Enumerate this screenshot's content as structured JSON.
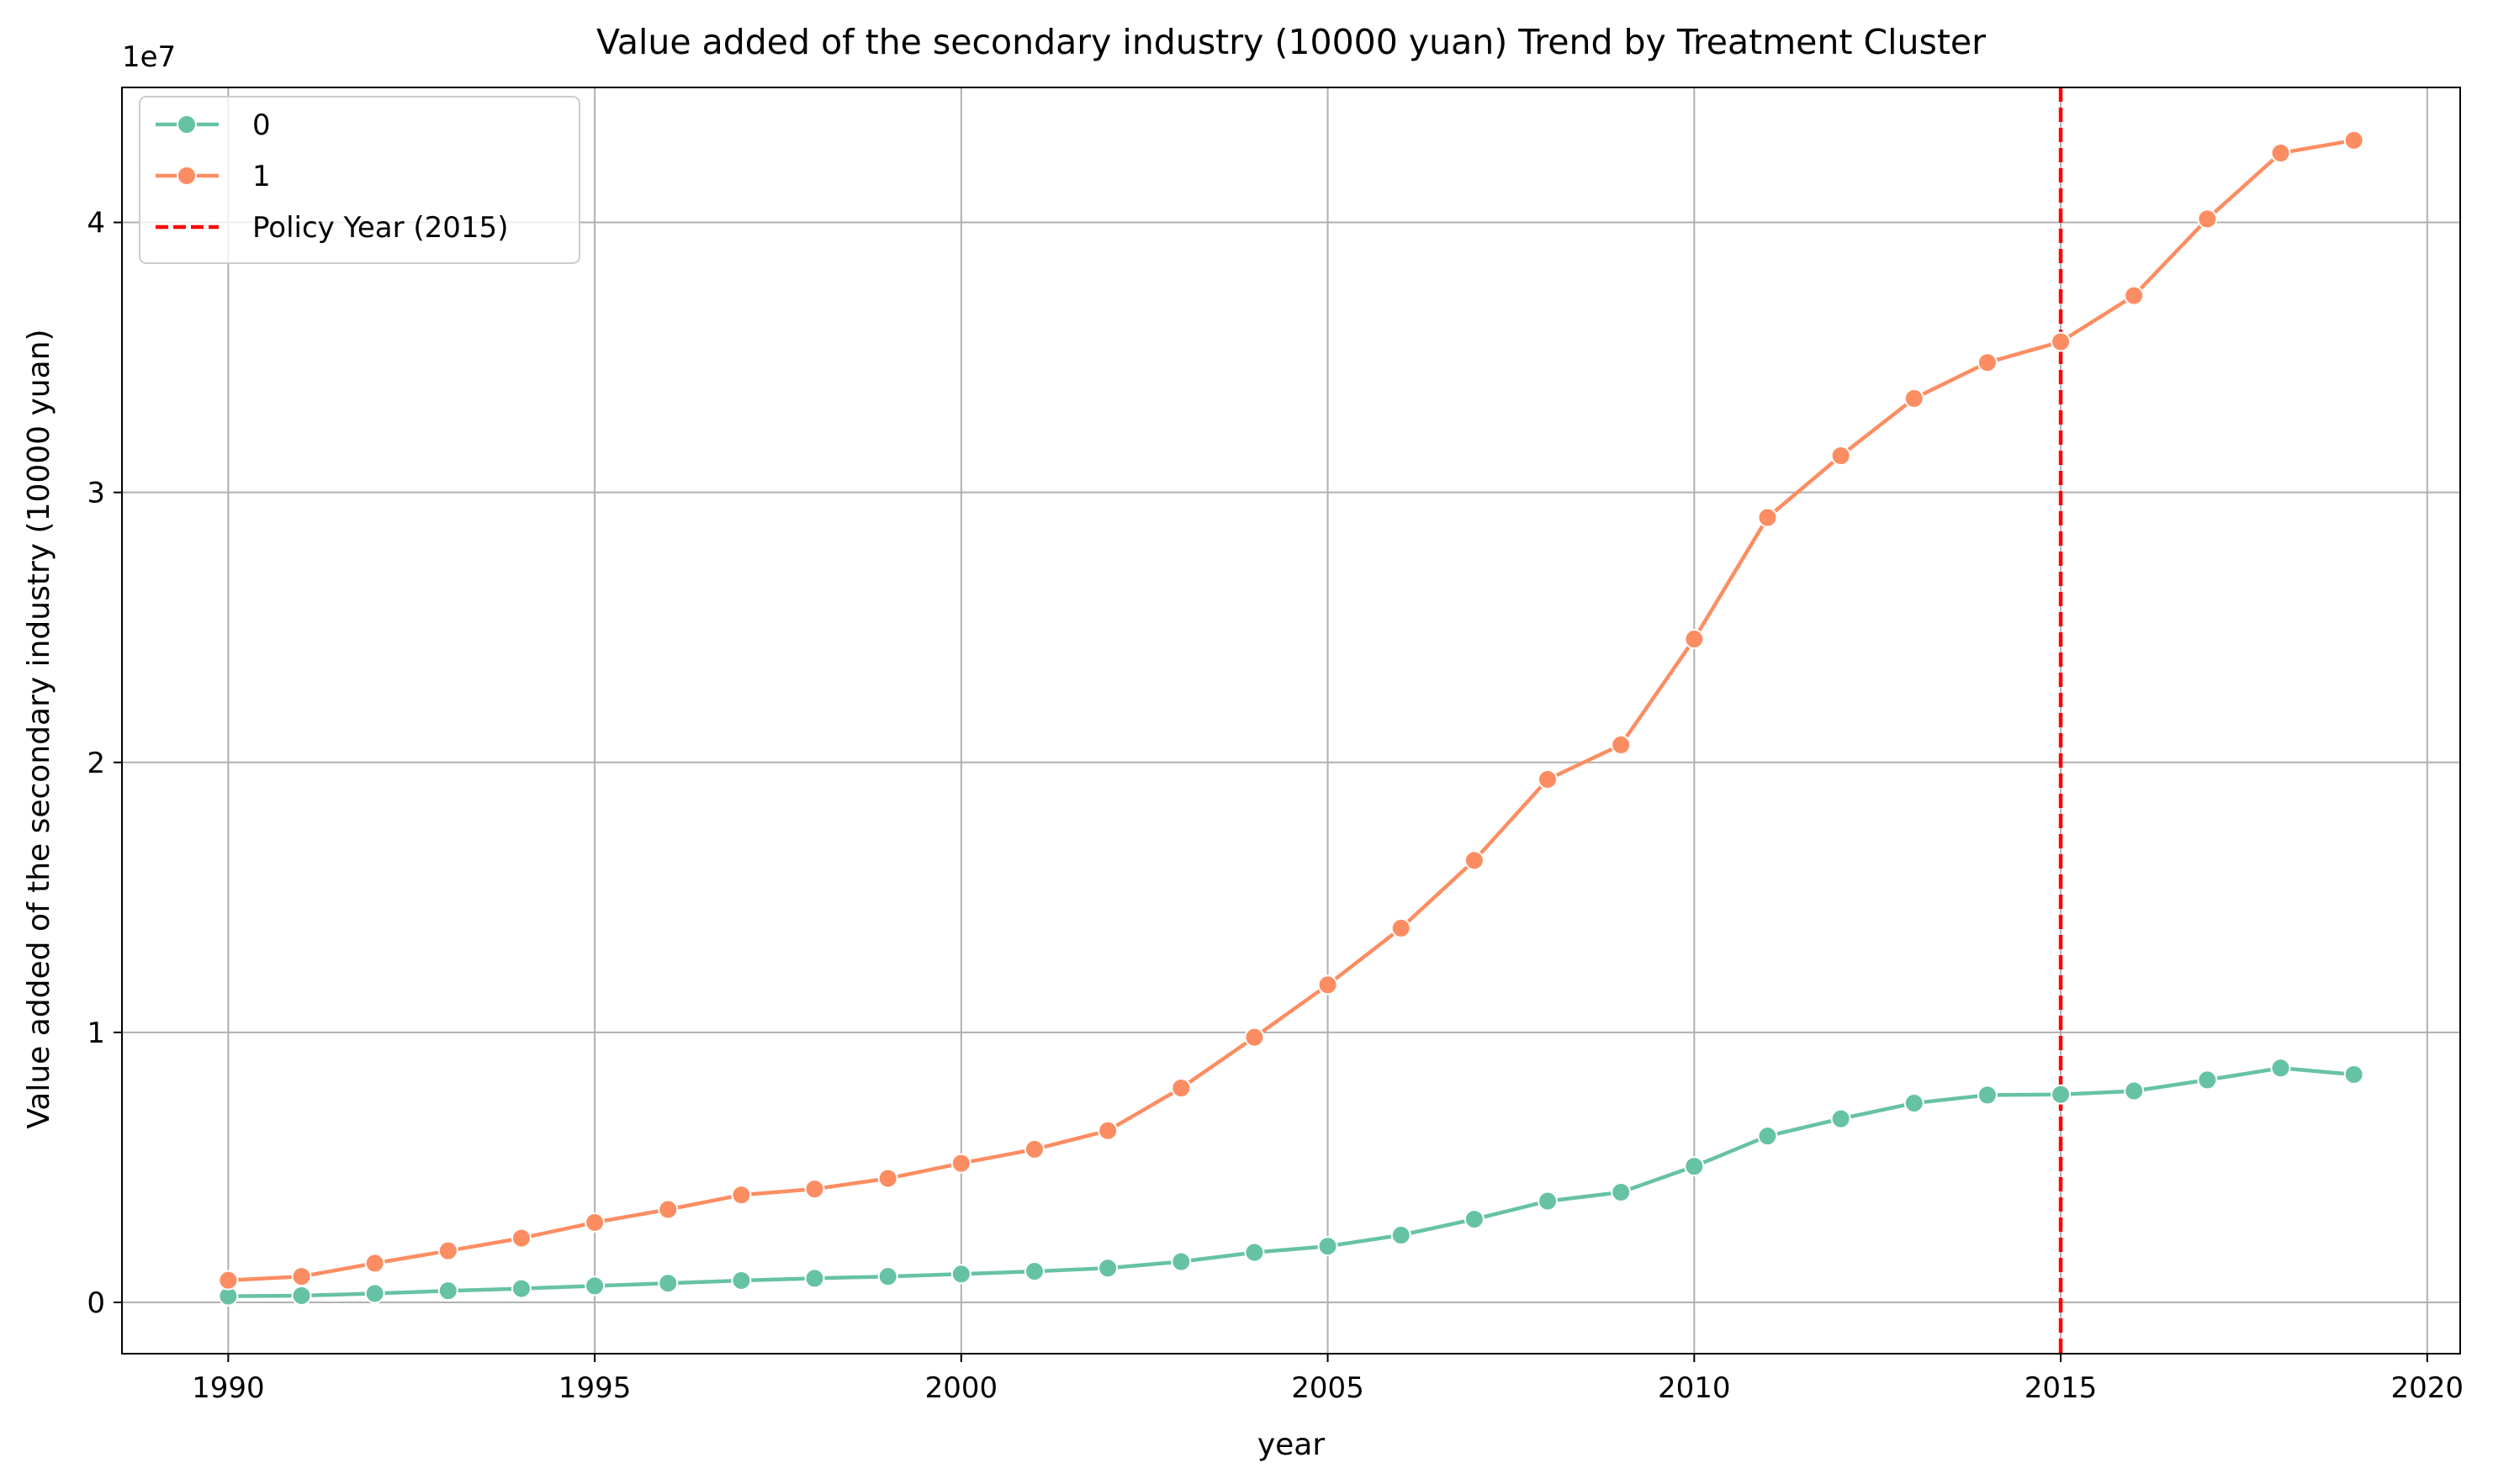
{
  "chart_data": {
    "type": "line",
    "title": "Value added of the secondary industry (10000 yuan) Trend by Treatment Cluster",
    "xlabel": "year",
    "ylabel": "Value added of the secondary industry (10000 yuan)",
    "y_offset_label": "1e7",
    "xlim": [
      1988.55,
      2020.45
    ],
    "ylim": [
      -1900000,
      45000000
    ],
    "x_ticks": [
      1990,
      1995,
      2000,
      2005,
      2010,
      2015,
      2020
    ],
    "y_ticks": [
      0,
      10000000,
      20000000,
      30000000,
      40000000
    ],
    "y_tick_labels": [
      "0",
      "1",
      "2",
      "3",
      "4"
    ],
    "grid": true,
    "legend_position": "upper-left",
    "x": [
      1990,
      1991,
      1992,
      1993,
      1994,
      1995,
      1996,
      1997,
      1998,
      1999,
      2000,
      2001,
      2002,
      2003,
      2004,
      2005,
      2006,
      2007,
      2008,
      2009,
      2010,
      2011,
      2012,
      2013,
      2014,
      2015,
      2016,
      2017,
      2018,
      2019
    ],
    "series": [
      {
        "name": "0",
        "color": "#66c2a5",
        "values": [
          230000,
          250000,
          330000,
          430000,
          510000,
          610000,
          710000,
          810000,
          890000,
          960000,
          1050000,
          1150000,
          1270000,
          1510000,
          1850000,
          2080000,
          2490000,
          3080000,
          3750000,
          4080000,
          5040000,
          6160000,
          6800000,
          7380000,
          7680000,
          7700000,
          7830000,
          8240000,
          8680000,
          8440000
        ]
      },
      {
        "name": "1",
        "color": "#fc8d62",
        "values": [
          820000,
          960000,
          1450000,
          1910000,
          2380000,
          2960000,
          3440000,
          3980000,
          4200000,
          4590000,
          5150000,
          5670000,
          6360000,
          7940000,
          9820000,
          11760000,
          13860000,
          16370000,
          19370000,
          20650000,
          24570000,
          29070000,
          31360000,
          33480000,
          34810000,
          35580000,
          37290000,
          40130000,
          42570000,
          43040000
        ]
      }
    ],
    "reference_line": {
      "x": 2015,
      "label": "Policy Year (2015)",
      "color": "#ff0000",
      "style": "dashed"
    }
  }
}
